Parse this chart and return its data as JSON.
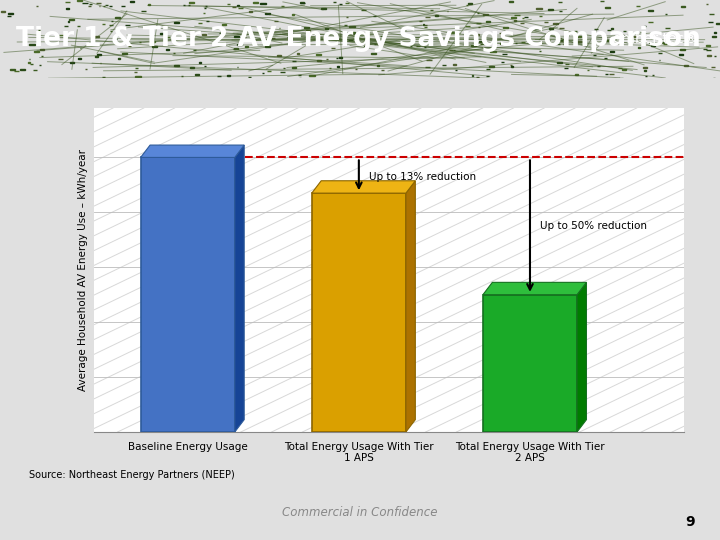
{
  "categories": [
    "Baseline Energy Usage",
    "Total Energy Usage With Tier\n1 APS",
    "Total Energy Usage With Tier\n2 APS"
  ],
  "values": [
    100,
    87,
    50
  ],
  "bar_colors": [
    "#4472C4",
    "#DAA000",
    "#1AAA28"
  ],
  "bar_edge_colors": [
    "#2E5B9A",
    "#8B6500",
    "#157020"
  ],
  "title": "Tier 1 & Tier 2 AV Energy Savings Comparison",
  "ylabel": "Average Household AV Energy Use – kWh/year",
  "source": "Source: Northeast Energy Partners (NEEP)",
  "footer": "Commercial in Confidence",
  "dashed_line_y": 100,
  "annotation1_text": "Up to 13% reduction",
  "annotation2_text": "Up to 50% reduction",
  "outer_bg": "#E0E0E0",
  "chart_bg": "#FFFFFF",
  "header_bg": "#1C2A10",
  "grid_color": "#BBBBBB",
  "ylim": [
    0,
    118
  ],
  "page_number": "9"
}
